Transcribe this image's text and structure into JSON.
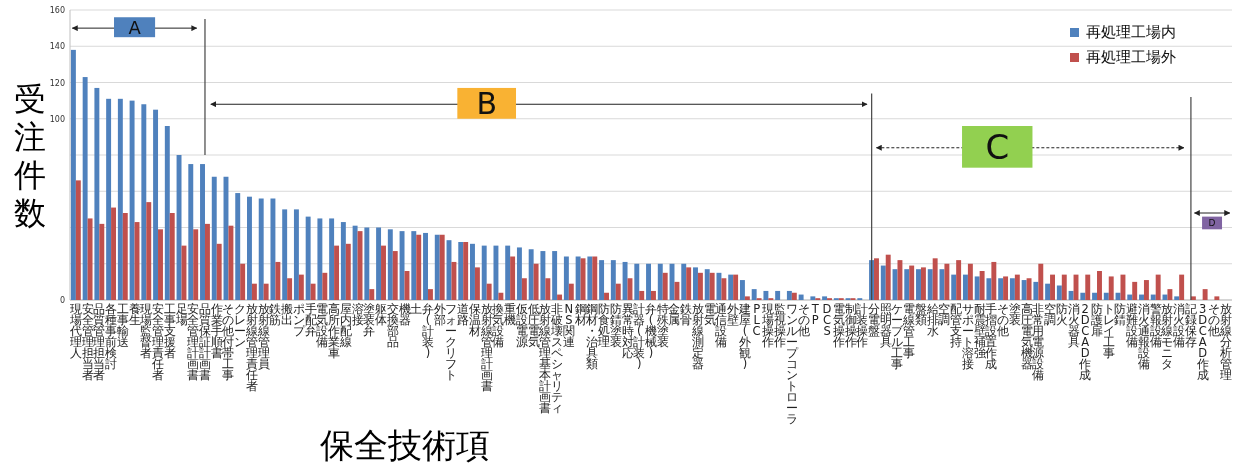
{
  "chart_data": {
    "type": "bar",
    "xlabel": "保全技術項",
    "ylabel": "受注件数",
    "categories": [
      "現場代理人",
      "安全管理担当者",
      "品質管理担当者",
      "各種事前検討",
      "工事輸送",
      "養生",
      "現場監督者",
      "安全管理責任者",
      "工事支援者",
      "足場",
      "安全管理計画書",
      "品質保証計画書",
      "作業手順書",
      "その他付帯工事",
      "クレーン",
      "放射線管理責任者",
      "放射線管理員",
      "鉄筋",
      "搬出",
      "ポンプ",
      "手配弁",
      "電気設備",
      "高所作業車",
      "屋内配線",
      "溶接",
      "塗装弁",
      "躯体",
      "交換部品",
      "機器",
      "土",
      "弁(計装)",
      "外部",
      "フォークリフト",
      "道路",
      "保温材",
      "放射線管理計画書",
      "換気設備",
      "重機",
      "仮設電源",
      "低圧電気",
      "放射線管理基本計画書",
      "非破壊スペシャリティ",
      "NS関連",
      "鋼材",
      "鋼材・治具類",
      "防食処理",
      "防錆塗装",
      "異常時対応",
      "計器(計装)",
      "弁(機械)",
      "特殊塗装",
      "金属",
      "鉄骨",
      "放射線測定器",
      "電気",
      "通信設備",
      "外壁",
      "建屋(外観)",
      "PLC",
      "現場操作",
      "監視操作",
      "ワンループコントローラ",
      "その他",
      "TP",
      "DCS",
      "電気操作",
      "制御操作",
      "計装操作",
      "分電盤",
      "照明器具",
      "ケーブル工事",
      "電線管工事",
      "盤類",
      "給排水",
      "空調",
      "配管支持",
      "サポート溶接",
      "耐震壁補強",
      "手摺設置作成",
      "その他",
      "塗装",
      "高圧電気機器",
      "非常用電源設備",
      "空調",
      "防火",
      "消火器具",
      "2DCAD作成",
      "防護扉",
      "トレイ工事",
      "防錆",
      "避難設備",
      "消火通報設備",
      "警報設備",
      "放射線モニタ",
      "消火設備",
      "記録保存",
      "3DCAD作成",
      "その他",
      "放射線分析管理"
    ],
    "series": [
      {
        "name": "再処理工場内",
        "color": "#4f81bd",
        "values": [
          138,
          123,
          117,
          111,
          111,
          110,
          108,
          105,
          96,
          80,
          75,
          75,
          68,
          68,
          59,
          57,
          56,
          56,
          50,
          50,
          46,
          45,
          45,
          43,
          41,
          40,
          40,
          39,
          38,
          38,
          37,
          36,
          33,
          32,
          31,
          30,
          30,
          30,
          29,
          28,
          27,
          27,
          24,
          24,
          24,
          22,
          22,
          21,
          20,
          20,
          20,
          20,
          20,
          18,
          17,
          15,
          14,
          11,
          6,
          5,
          5,
          5,
          3,
          2,
          2,
          1,
          1,
          1,
          22,
          19,
          17,
          17,
          17,
          17,
          17,
          14,
          14,
          13,
          12,
          12,
          12,
          11,
          10,
          9,
          8,
          5,
          4,
          4,
          4,
          4,
          3,
          3,
          3,
          3,
          2,
          0,
          0,
          0,
          0
        ]
      },
      {
        "name": "再処理工場外",
        "color": "#c0504d",
        "values": [
          66,
          45,
          42,
          51,
          48,
          43,
          54,
          39,
          48,
          30,
          39,
          42,
          31,
          41,
          20,
          9,
          9,
          21,
          12,
          14,
          9,
          15,
          30,
          31,
          38,
          6,
          30,
          27,
          16,
          36,
          6,
          36,
          21,
          32,
          18,
          9,
          4,
          24,
          12,
          20,
          12,
          3,
          9,
          23,
          24,
          4,
          9,
          12,
          5,
          5,
          15,
          10,
          18,
          15,
          15,
          12,
          14,
          2,
          1,
          1,
          0,
          4,
          0,
          1,
          1,
          1,
          1,
          0,
          23,
          25,
          22,
          19,
          18,
          23,
          20,
          22,
          20,
          16,
          21,
          13,
          14,
          12,
          20,
          14,
          14,
          14,
          14,
          16,
          13,
          14,
          10,
          11,
          14,
          6,
          14,
          2,
          6,
          2,
          0
        ]
      }
    ],
    "ylim": [
      0,
      160
    ],
    "yticks": [
      0,
      {
        "value": 20,
        "label": null
      },
      {
        "value": 40,
        "label": null
      },
      {
        "value": 60,
        "label": null
      },
      {
        "value": 80,
        "label": null
      },
      100,
      120,
      140,
      160
    ],
    "grid": "y",
    "legend": "top right",
    "annotations": [
      "A",
      "B",
      "C",
      "D"
    ]
  }
}
